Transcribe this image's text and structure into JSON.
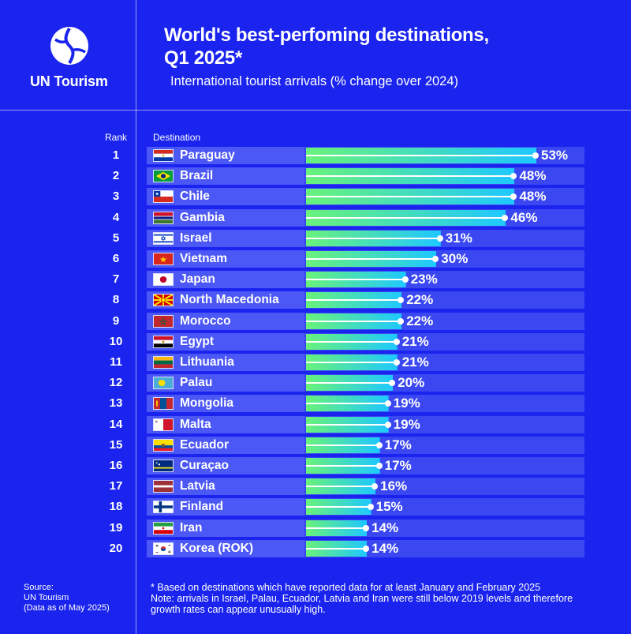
{
  "brand": {
    "name": "UN Tourism",
    "logo_icon": "un-tourism-logo-icon"
  },
  "header": {
    "title_line1": "World's best-perfoming destinations,",
    "title_line2": "Q1 2025*",
    "subtitle": "International tourist arrivals (% change over 2024)"
  },
  "colors": {
    "background": "#1a24ee",
    "row": "#3b48f2",
    "bar_start": "#69f27a",
    "bar_end": "#1ec8ff"
  },
  "chart_data": {
    "type": "bar",
    "orientation": "horizontal",
    "title": "World's best-perfoming destinations, Q1 2025*",
    "subtitle": "International tourist arrivals (% change over 2024)",
    "column_headers": {
      "rank": "Rank",
      "destination": "Destination"
    },
    "unit": "%",
    "xlim": [
      0,
      53
    ],
    "rows": [
      {
        "rank": "1",
        "name": "Paraguay",
        "value": 53,
        "label": "53%",
        "flag": "paraguay"
      },
      {
        "rank": "2",
        "name": "Brazil",
        "value": 48,
        "label": "48%",
        "flag": "brazil"
      },
      {
        "rank": "3",
        "name": "Chile",
        "value": 48,
        "label": "48%",
        "flag": "chile"
      },
      {
        "rank": "4",
        "name": "Gambia",
        "value": 46,
        "label": "46%",
        "flag": "gambia"
      },
      {
        "rank": "5",
        "name": "Israel",
        "value": 31,
        "label": "31%",
        "flag": "israel"
      },
      {
        "rank": "6",
        "name": "Vietnam",
        "value": 30,
        "label": "30%",
        "flag": "vietnam"
      },
      {
        "rank": "7",
        "name": "Japan",
        "value": 23,
        "label": "23%",
        "flag": "japan"
      },
      {
        "rank": "8",
        "name": "North Macedonia",
        "value": 22,
        "label": "22%",
        "flag": "north-macedonia"
      },
      {
        "rank": "9",
        "name": "Morocco",
        "value": 22,
        "label": "22%",
        "flag": "morocco"
      },
      {
        "rank": "10",
        "name": "Egypt",
        "value": 21,
        "label": "21%",
        "flag": "egypt"
      },
      {
        "rank": "11",
        "name": "Lithuania",
        "value": 21,
        "label": "21%",
        "flag": "lithuania"
      },
      {
        "rank": "12",
        "name": "Palau",
        "value": 20,
        "label": "20%",
        "flag": "palau"
      },
      {
        "rank": "13",
        "name": "Mongolia",
        "value": 19,
        "label": "19%",
        "flag": "mongolia"
      },
      {
        "rank": "14",
        "name": "Malta",
        "value": 19,
        "label": "19%",
        "flag": "malta"
      },
      {
        "rank": "15",
        "name": "Ecuador",
        "value": 17,
        "label": "17%",
        "flag": "ecuador"
      },
      {
        "rank": "16",
        "name": "Curaçao",
        "value": 17,
        "label": "17%",
        "flag": "curacao"
      },
      {
        "rank": "17",
        "name": "Latvia",
        "value": 16,
        "label": "16%",
        "flag": "latvia"
      },
      {
        "rank": "18",
        "name": "Finland",
        "value": 15,
        "label": "15%",
        "flag": "finland"
      },
      {
        "rank": "19",
        "name": "Iran",
        "value": 14,
        "label": "14%",
        "flag": "iran"
      },
      {
        "rank": "20",
        "name": "Korea (ROK)",
        "value": 14,
        "label": "14%",
        "flag": "korea"
      }
    ]
  },
  "footer": {
    "source_line1": "Source:",
    "source_line2": "UN Tourism",
    "source_line3": "(Data as of May 2025)",
    "note_line1": "* Based on destinations which have reported data for at least January and February 2025",
    "note_line2": "Note: arrivals in Israel, Palau, Ecuador, Latvia and Iran were still below 2019 levels and therefore",
    "note_line3": "growth rates can appear unusually high."
  }
}
